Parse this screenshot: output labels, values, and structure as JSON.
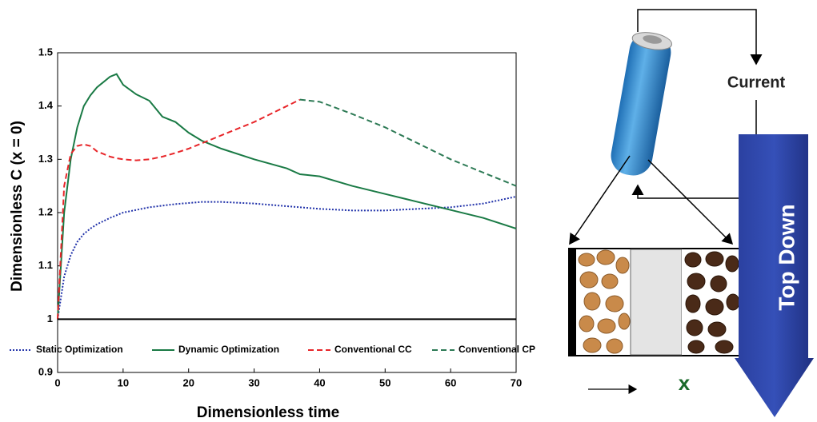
{
  "chart_data": {
    "type": "line",
    "x_label": "Dimensionless time",
    "y_label": "Dimensionless C (x = 0)",
    "x": [
      0,
      1,
      2,
      3,
      4,
      5,
      6,
      8,
      9,
      10,
      12,
      14,
      16,
      18,
      20,
      22,
      25,
      30,
      35,
      37,
      40,
      45,
      50,
      55,
      60,
      65,
      70
    ],
    "series": [
      {
        "name": "Static Optimization",
        "color": "#2233aa",
        "dash": "2,2",
        "values": [
          1.0,
          1.08,
          1.12,
          1.145,
          1.16,
          1.17,
          1.178,
          1.19,
          1.195,
          1.2,
          1.205,
          1.21,
          1.213,
          1.216,
          1.218,
          1.22,
          1.22,
          1.217,
          1.212,
          1.21,
          1.207,
          1.204,
          1.204,
          1.207,
          1.21,
          1.217,
          1.23
        ]
      },
      {
        "name": "Dynamic Optimization",
        "color": "#1a7a45",
        "dash": "",
        "values": [
          1.0,
          1.2,
          1.3,
          1.36,
          1.4,
          1.42,
          1.435,
          1.455,
          1.46,
          1.44,
          1.422,
          1.41,
          1.38,
          1.37,
          1.35,
          1.335,
          1.32,
          1.3,
          1.283,
          1.272,
          1.268,
          1.25,
          1.235,
          1.22,
          1.205,
          1.19,
          1.17
        ]
      },
      {
        "name": "Conventional CC",
        "color": "#e8262a",
        "dash": "7,4",
        "values": [
          1.0,
          1.25,
          1.31,
          1.325,
          1.328,
          1.325,
          1.315,
          1.305,
          1.302,
          1.3,
          1.298,
          1.3,
          1.305,
          1.312,
          1.32,
          1.33,
          1.345,
          1.37,
          1.4,
          1.412,
          null,
          null,
          null,
          null,
          null,
          null,
          null
        ]
      },
      {
        "name": "Conventional CP",
        "color": "#2d7a55",
        "dash": "7,4",
        "values": [
          null,
          null,
          null,
          null,
          null,
          null,
          null,
          null,
          null,
          null,
          null,
          null,
          null,
          null,
          null,
          null,
          null,
          null,
          null,
          1.412,
          1.408,
          1.385,
          1.36,
          1.33,
          1.3,
          1.275,
          1.25
        ]
      },
      {
        "color": "#000000",
        "dash": "",
        "values": [
          1,
          1,
          1,
          1,
          1,
          1,
          1,
          1,
          1,
          1,
          1,
          1,
          1,
          1,
          1,
          1,
          1,
          1,
          1,
          1,
          1,
          1,
          1,
          1,
          1,
          1,
          1
        ]
      }
    ],
    "xlim": [
      0,
      70
    ],
    "xticks": [
      0,
      10,
      20,
      30,
      40,
      50,
      60,
      70
    ],
    "ylim": [
      0.9,
      1.5
    ],
    "yticks": [
      0.9,
      1,
      1.1,
      1.2,
      1.3,
      1.4,
      1.5
    ],
    "grid": false
  },
  "diagram": {
    "current_label": "Current",
    "arrow_label": "Top Down",
    "direction_label": "x"
  }
}
